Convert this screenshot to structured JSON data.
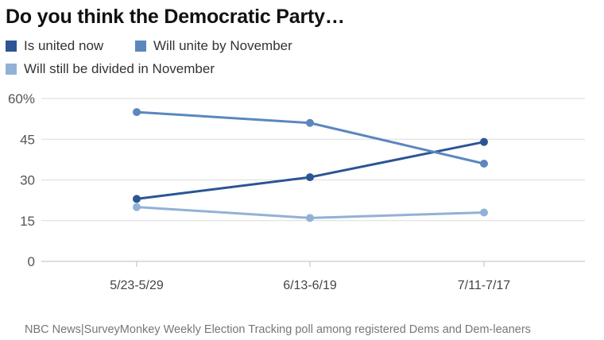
{
  "title": "Do you think the Democratic Party…",
  "source": "NBC News|SurveyMonkey Weekly Election Tracking poll among registered Dems and Dem-leaners",
  "chart_data": {
    "type": "line",
    "title": "Do you think the Democratic Party…",
    "categories": [
      "5/23-5/29",
      "6/13-6/19",
      "7/11-7/17"
    ],
    "series": [
      {
        "name": "Is united now",
        "color": "#2b5594",
        "values": [
          23,
          31,
          44
        ]
      },
      {
        "name": "Will unite by November",
        "color": "#5b87bd",
        "values": [
          55,
          51,
          36
        ]
      },
      {
        "name": "Will still be divided in November",
        "color": "#92b1d6",
        "values": [
          20,
          16,
          18
        ]
      }
    ],
    "ylim": [
      0,
      60
    ],
    "yticks": [
      0,
      15,
      30,
      45,
      60
    ],
    "ytick_labels": [
      "0",
      "15",
      "30",
      "45",
      "60%"
    ],
    "xlabel": "",
    "ylabel": "",
    "grid": true,
    "legend_position": "top-left"
  }
}
